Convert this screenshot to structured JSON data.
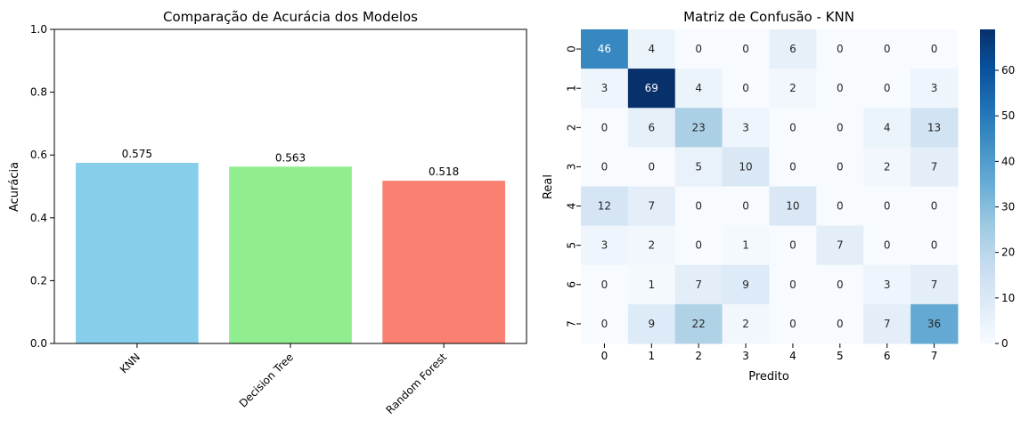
{
  "chart_data": [
    {
      "type": "bar",
      "title": "Comparação de Acurácia dos Modelos",
      "xlabel": "",
      "ylabel": "Acurácia",
      "ylim": [
        0,
        1
      ],
      "yticks": [
        "0.0",
        "0.2",
        "0.4",
        "0.6",
        "0.8",
        "1.0"
      ],
      "categories": [
        "KNN",
        "Decision Tree",
        "Random Forest"
      ],
      "values": [
        0.575,
        0.563,
        0.518
      ],
      "value_labels": [
        "0.575",
        "0.563",
        "0.518"
      ],
      "colors": [
        "#87ceeb",
        "#90ee90",
        "#fa8072"
      ],
      "grid": false
    },
    {
      "type": "heatmap",
      "title": "Matriz de Confusão - KNN",
      "xlabel": "Predito",
      "ylabel": "Real",
      "x_ticks": [
        "0",
        "1",
        "2",
        "3",
        "4",
        "5",
        "6",
        "7"
      ],
      "y_ticks": [
        "0",
        "1",
        "2",
        "3",
        "4",
        "5",
        "6",
        "7"
      ],
      "matrix": [
        [
          46,
          4,
          0,
          0,
          6,
          0,
          0,
          0
        ],
        [
          3,
          69,
          4,
          0,
          2,
          0,
          0,
          3
        ],
        [
          0,
          6,
          23,
          3,
          0,
          0,
          4,
          13
        ],
        [
          0,
          0,
          5,
          10,
          0,
          0,
          2,
          7
        ],
        [
          12,
          7,
          0,
          0,
          10,
          0,
          0,
          0
        ],
        [
          3,
          2,
          0,
          1,
          0,
          7,
          0,
          0
        ],
        [
          0,
          1,
          7,
          9,
          0,
          0,
          3,
          7
        ],
        [
          0,
          9,
          22,
          2,
          0,
          0,
          7,
          36
        ]
      ],
      "colormap": "Blues",
      "vmin": 0,
      "vmax": 69,
      "colorbar_ticks": [
        "0",
        "10",
        "20",
        "30",
        "40",
        "50",
        "60"
      ],
      "colorbar_values": [
        0,
        10,
        20,
        30,
        40,
        50,
        60
      ]
    }
  ]
}
